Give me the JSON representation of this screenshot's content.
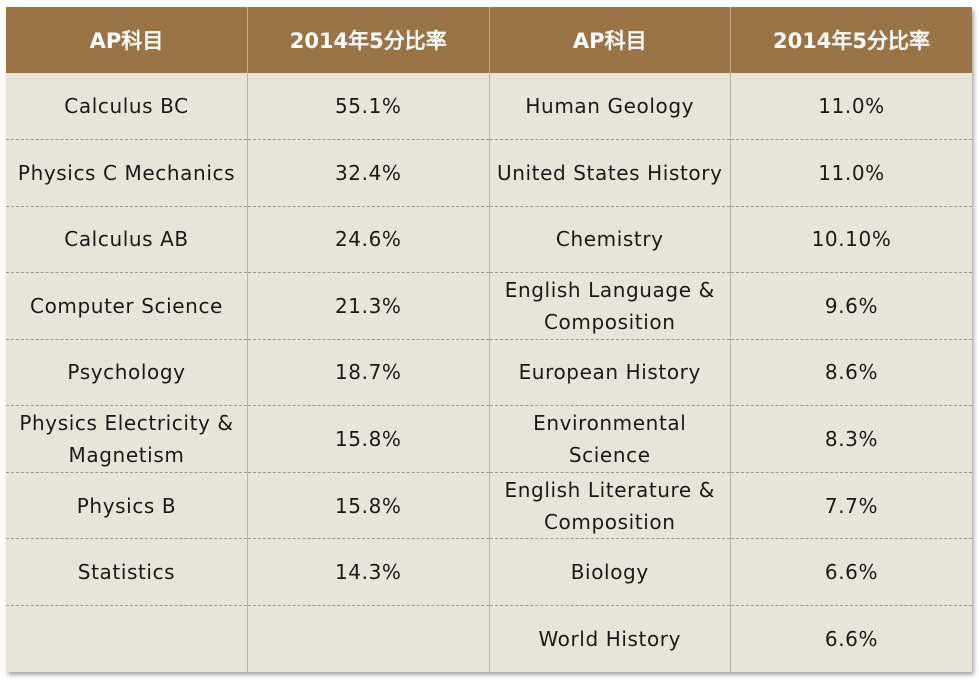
{
  "table": {
    "headers": [
      "AP科目",
      "2014年5分比率",
      "AP科目",
      "2014年5分比率"
    ],
    "rows": [
      [
        "Calculus BC",
        "55.1%",
        "Human Geology",
        "11.0%"
      ],
      [
        "Physics C Mechanics",
        "32.4%",
        "United States History",
        "11.0%"
      ],
      [
        "Calculus AB",
        "24.6%",
        "Chemistry",
        "10.10%"
      ],
      [
        "Computer Science",
        "21.3%",
        "English Language & Composition",
        "9.6%"
      ],
      [
        "Psychology",
        "18.7%",
        "European History",
        "8.6%"
      ],
      [
        "Physics Electricity & Magnetism",
        "15.8%",
        "Environmental Science",
        "8.3%"
      ],
      [
        "Physics B",
        "15.8%",
        "English Literature & Composition",
        "7.7%"
      ],
      [
        "Statistics",
        "14.3%",
        "Biology",
        "6.6%"
      ],
      [
        "",
        "",
        "World History",
        "6.6%"
      ]
    ]
  },
  "colors": {
    "header_bg": "#9a7346",
    "header_text": "#ffffff",
    "body_bg": "#e7e4d9",
    "body_text": "#1a1a1a"
  }
}
